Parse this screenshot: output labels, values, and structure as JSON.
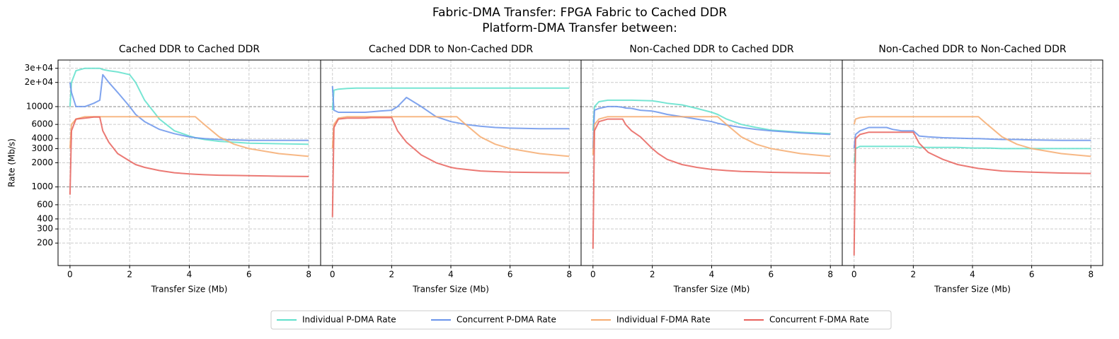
{
  "title": "Fabric-DMA Transfer: FPGA Fabric to Cached DDR",
  "subtitle": "Platform-DMA Transfer between:",
  "chart_data": [
    {
      "type": "line",
      "title": "Cached DDR to Cached DDR",
      "x_label": "Transfer Size (Mb)",
      "y_label": "Rate (Mb/s)",
      "yscale": "log",
      "grid": true,
      "xlim": [
        -0.4,
        8.4
      ],
      "xticks": [
        0,
        2,
        4,
        6,
        8
      ],
      "ylim": [
        105,
        38000
      ],
      "yticks": [
        200,
        300,
        400,
        600,
        1000,
        2000,
        3000,
        4000,
        6000,
        10000,
        {
          "value": 20000,
          "label": "2e+04"
        },
        {
          "value": 30000,
          "label": "3e+04"
        }
      ],
      "x": [
        0,
        0.05,
        0.2,
        0.5,
        0.8,
        1.0,
        1.1,
        1.3,
        1.6,
        2.0,
        2.2,
        2.5,
        3,
        3.5,
        4,
        4.2,
        4.5,
        5,
        5.5,
        6,
        7,
        8
      ],
      "series": [
        {
          "name": "Individual P-DMA Rate",
          "color": "#5fe0cb",
          "values": [
            10000,
            20000,
            28000,
            30000,
            30000,
            30000,
            29000,
            28000,
            27000,
            25000,
            20000,
            12000,
            7000,
            5000,
            4300,
            4100,
            3900,
            3700,
            3600,
            3500,
            3450,
            3400
          ]
        },
        {
          "name": "Concurrent P-DMA Rate",
          "color": "#6a94eb",
          "values": [
            20000,
            15000,
            10000,
            10000,
            11000,
            12000,
            25000,
            20000,
            15000,
            10000,
            8000,
            6500,
            5200,
            4600,
            4200,
            4100,
            4000,
            3900,
            3850,
            3800,
            3800,
            3800
          ]
        },
        {
          "name": "Individual F-DMA Rate",
          "color": "#f6ab70",
          "values": [
            3000,
            6000,
            7000,
            7500,
            7500,
            7500,
            7500,
            7500,
            7500,
            7500,
            7500,
            7500,
            7500,
            7500,
            7500,
            7500,
            6000,
            4200,
            3400,
            3000,
            2600,
            2400
          ]
        },
        {
          "name": "Concurrent F-DMA Rate",
          "color": "#e8615c",
          "values": [
            800,
            5000,
            7000,
            7200,
            7400,
            7400,
            5000,
            3600,
            2600,
            2100,
            1900,
            1750,
            1600,
            1500,
            1450,
            1440,
            1420,
            1400,
            1390,
            1380,
            1360,
            1350
          ]
        }
      ]
    },
    {
      "type": "line",
      "title": "Cached DDR to Non-Cached DDR",
      "x_label": "Transfer Size (Mb)",
      "yscale": "log",
      "grid": true,
      "xlim": [
        -0.4,
        8.4
      ],
      "xticks": [
        0,
        2,
        4,
        6,
        8
      ],
      "x": [
        0,
        0.05,
        0.2,
        0.5,
        0.8,
        1.0,
        1.1,
        1.3,
        1.6,
        2.0,
        2.2,
        2.5,
        3,
        3.5,
        4,
        4.2,
        4.5,
        5,
        5.5,
        6,
        7,
        8
      ],
      "series": [
        {
          "color": "#5fe0cb",
          "values": [
            9000,
            16000,
            16500,
            16800,
            17000,
            17000,
            17000,
            17000,
            17000,
            17000,
            17000,
            17000,
            17000,
            17000,
            17000,
            17000,
            17000,
            17000,
            17000,
            17000,
            17000,
            17000
          ]
        },
        {
          "color": "#6a94eb",
          "values": [
            18000,
            9000,
            8500,
            8500,
            8500,
            8500,
            8500,
            8600,
            8800,
            9000,
            10000,
            13000,
            10000,
            7500,
            6500,
            6300,
            6000,
            5700,
            5500,
            5400,
            5300,
            5300
          ]
        },
        {
          "color": "#f6ab70",
          "values": [
            3000,
            6000,
            7200,
            7500,
            7500,
            7500,
            7500,
            7500,
            7500,
            7500,
            7500,
            7500,
            7500,
            7500,
            7500,
            7500,
            6000,
            4200,
            3400,
            3000,
            2600,
            2400
          ]
        },
        {
          "color": "#e8615c",
          "values": [
            420,
            5500,
            7000,
            7200,
            7200,
            7200,
            7200,
            7300,
            7300,
            7300,
            5000,
            3600,
            2500,
            2000,
            1750,
            1700,
            1650,
            1580,
            1550,
            1530,
            1510,
            1500
          ]
        }
      ]
    },
    {
      "type": "line",
      "title": "Non-Cached DDR to Cached DDR",
      "x_label": "Transfer Size (Mb)",
      "yscale": "log",
      "grid": true,
      "xlim": [
        -0.4,
        8.4
      ],
      "xticks": [
        0,
        2,
        4,
        6,
        8
      ],
      "x": [
        0,
        0.05,
        0.2,
        0.5,
        0.8,
        1.0,
        1.1,
        1.3,
        1.6,
        2.0,
        2.2,
        2.5,
        3,
        3.5,
        4,
        4.2,
        4.5,
        5,
        5.5,
        6,
        7,
        8
      ],
      "series": [
        {
          "color": "#5fe0cb",
          "values": [
            5000,
            10000,
            11500,
            12000,
            12000,
            12000,
            12000,
            12000,
            11900,
            11800,
            11500,
            11000,
            10500,
            9500,
            8500,
            8000,
            7000,
            6000,
            5500,
            5100,
            4800,
            4600
          ]
        },
        {
          "color": "#6a94eb",
          "values": [
            3000,
            9000,
            9500,
            10000,
            10000,
            9800,
            9600,
            9500,
            9000,
            8800,
            8500,
            8000,
            7500,
            7000,
            6500,
            6200,
            5900,
            5500,
            5200,
            5000,
            4700,
            4500
          ]
        },
        {
          "color": "#f6ab70",
          "values": [
            2500,
            6000,
            7000,
            7500,
            7500,
            7500,
            7500,
            7500,
            7500,
            7500,
            7500,
            7500,
            7500,
            7500,
            7500,
            7500,
            6000,
            4200,
            3400,
            3000,
            2600,
            2400
          ]
        },
        {
          "color": "#e8615c",
          "values": [
            170,
            5000,
            6500,
            7000,
            7000,
            7000,
            6000,
            5000,
            4200,
            3000,
            2600,
            2200,
            1900,
            1750,
            1650,
            1630,
            1600,
            1560,
            1540,
            1520,
            1500,
            1480
          ]
        }
      ]
    },
    {
      "type": "line",
      "title": "Non-Cached DDR to Non-Cached DDR",
      "x_label": "Transfer Size (Mb)",
      "yscale": "log",
      "grid": true,
      "xlim": [
        -0.4,
        8.4
      ],
      "xticks": [
        0,
        2,
        4,
        6,
        8
      ],
      "x": [
        0,
        0.05,
        0.2,
        0.5,
        0.8,
        1.0,
        1.1,
        1.3,
        1.6,
        2.0,
        2.2,
        2.5,
        3,
        3.5,
        4,
        4.2,
        4.5,
        5,
        5.5,
        6,
        7,
        8
      ],
      "series": [
        {
          "color": "#5fe0cb",
          "values": [
            2000,
            3000,
            3200,
            3200,
            3200,
            3200,
            3200,
            3200,
            3200,
            3200,
            3100,
            3100,
            3100,
            3100,
            3050,
            3050,
            3050,
            3000,
            3000,
            3000,
            3000,
            3000
          ]
        },
        {
          "color": "#6a94eb",
          "values": [
            3000,
            4500,
            5000,
            5500,
            5500,
            5500,
            5500,
            5200,
            5000,
            5000,
            4300,
            4200,
            4100,
            4050,
            4000,
            4000,
            3950,
            3900,
            3900,
            3850,
            3800,
            3800
          ]
        },
        {
          "color": "#f6ab70",
          "values": [
            6000,
            7000,
            7300,
            7500,
            7500,
            7500,
            7500,
            7500,
            7500,
            7500,
            7500,
            7500,
            7500,
            7500,
            7500,
            7500,
            6000,
            4200,
            3400,
            3000,
            2600,
            2400
          ]
        },
        {
          "color": "#e8615c",
          "values": [
            140,
            4000,
            4500,
            4800,
            4800,
            4800,
            4800,
            4800,
            4800,
            4800,
            3500,
            2700,
            2200,
            1900,
            1750,
            1700,
            1650,
            1580,
            1550,
            1530,
            1490,
            1470
          ]
        }
      ]
    }
  ]
}
